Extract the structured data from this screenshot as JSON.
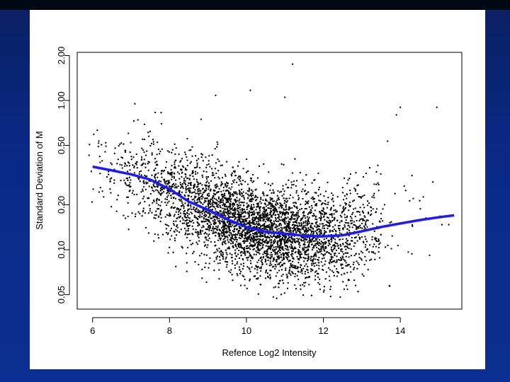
{
  "chart_data": {
    "type": "scatter",
    "title": "",
    "xlabel": "Refence Log2 Intensity",
    "ylabel": "Standard Deviation of M",
    "x_ticks": [
      "6",
      "8",
      "10",
      "12",
      "14"
    ],
    "y_ticks": [
      "0.05",
      "0.10",
      "0.20",
      "0.50",
      "1.00",
      "2.00"
    ],
    "xlim": [
      5.6,
      15.6
    ],
    "ylim": [
      0.04,
      2.1
    ],
    "y_scale": "log",
    "grid": false,
    "colors": {
      "points": "#000000",
      "trend": "#1a1aff"
    },
    "series": [
      {
        "type": "line",
        "values_x": [
          6.0,
          6.5,
          7.0,
          7.5,
          8.0,
          8.5,
          9.0,
          9.5,
          10.0,
          10.5,
          11.0,
          11.5,
          12.0,
          12.5,
          13.0,
          13.5,
          14.0,
          14.5,
          15.0,
          15.4
        ],
        "values_y": [
          0.36,
          0.34,
          0.32,
          0.295,
          0.255,
          0.21,
          0.185,
          0.16,
          0.142,
          0.132,
          0.128,
          0.124,
          0.123,
          0.125,
          0.133,
          0.142,
          0.15,
          0.158,
          0.165,
          0.17
        ]
      }
    ]
  }
}
